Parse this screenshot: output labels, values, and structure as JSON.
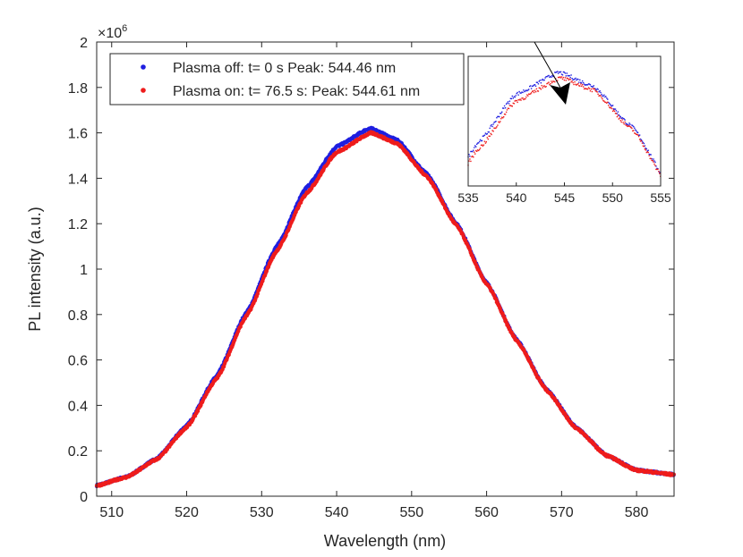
{
  "chart_data": [
    {
      "type": "scatter",
      "xlabel": "Wavelength (nm)",
      "ylabel": "PL intensity (a.u.)",
      "xlim": [
        508,
        585
      ],
      "ylim": [
        0,
        2000000
      ],
      "y_exponent_label": "×10",
      "y_exponent_power": "6",
      "x_ticks": [
        510,
        520,
        530,
        540,
        550,
        560,
        570,
        580
      ],
      "x_tick_labels": [
        "510",
        "520",
        "530",
        "540",
        "550",
        "560",
        "570",
        "580"
      ],
      "y_ticks": [
        0,
        200000,
        400000,
        600000,
        800000,
        1000000,
        1200000,
        1400000,
        1600000,
        1800000,
        2000000
      ],
      "y_tick_labels": [
        "0",
        "0.2",
        "0.4",
        "0.6",
        "0.8",
        "1",
        "1.2",
        "1.4",
        "1.6",
        "1.8",
        "2"
      ],
      "legend_position": "top-left",
      "series": [
        {
          "name": "Plasma off: t= 0 s Peak: 544.46 nm",
          "color": "#1f1fe0",
          "peak_x": 544.46,
          "peak_y": 1620000,
          "x": [
            508,
            512,
            516,
            520,
            524,
            528,
            532,
            536,
            540,
            544.46,
            548,
            552,
            556,
            560,
            564,
            568,
            572,
            576,
            580,
            585
          ],
          "y": [
            48000,
            85000,
            165000,
            310000,
            530000,
            810000,
            1100000,
            1360000,
            1540000,
            1620000,
            1570000,
            1420000,
            1200000,
            940000,
            690000,
            470000,
            300000,
            180000,
            115000,
            95000
          ]
        },
        {
          "name": "Plasma on: t= 76.5 s: Peak: 544.61 nm",
          "color": "#ee1c1c",
          "peak_x": 544.61,
          "peak_y": 1600000,
          "x": [
            508,
            512,
            516,
            520,
            524,
            528,
            532,
            536,
            540,
            544.61,
            548,
            552,
            556,
            560,
            564,
            568,
            572,
            576,
            580,
            585
          ],
          "y": [
            47000,
            84000,
            162000,
            303000,
            518000,
            795000,
            1080000,
            1335000,
            1515000,
            1600000,
            1555000,
            1410000,
            1192000,
            935000,
            686000,
            467000,
            298000,
            179000,
            114000,
            95000
          ]
        }
      ]
    },
    {
      "type": "scatter",
      "role": "inset",
      "xlim": [
        535,
        555
      ],
      "x_ticks": [
        535,
        540,
        545,
        550,
        555
      ],
      "x_tick_labels": [
        "535",
        "540",
        "545",
        "550",
        "555"
      ],
      "annotation": "arrow pointing downward from the blue peak to the red peak",
      "series_ref": [
        "Plasma off: t= 0 s Peak: 544.46 nm",
        "Plasma on: t= 76.5 s: Peak: 544.61 nm"
      ]
    }
  ]
}
